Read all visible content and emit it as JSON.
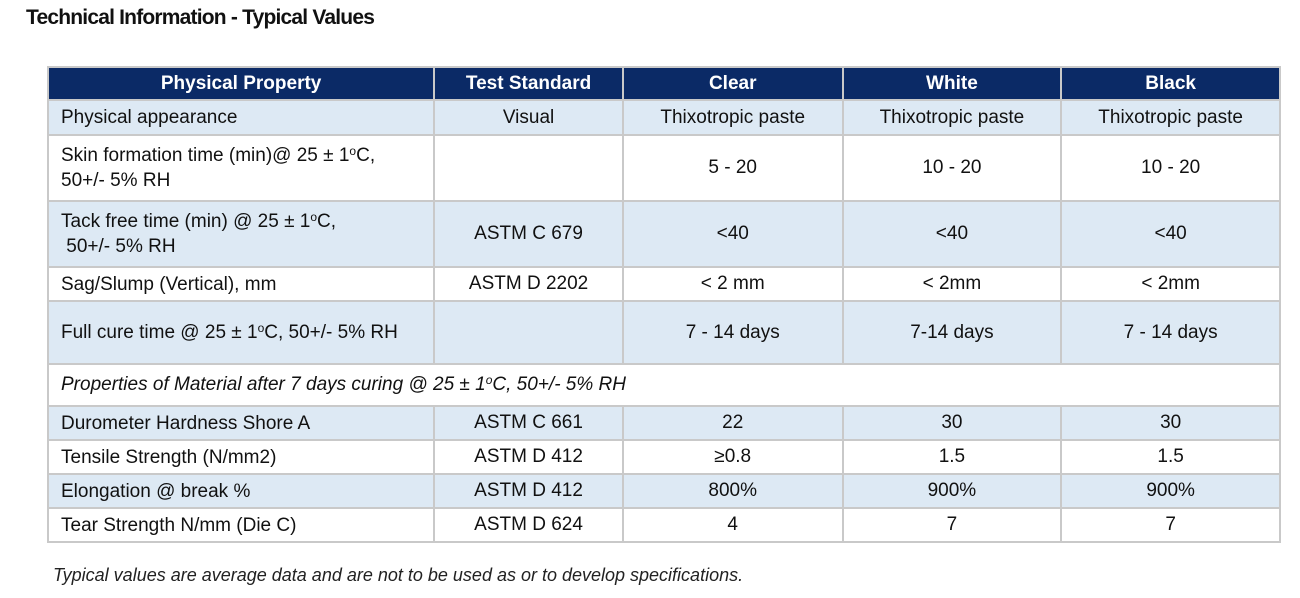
{
  "title": "Technical Information - Typical Values",
  "headers": [
    "Physical Property",
    "Test Standard",
    "Clear",
    "White",
    "Black"
  ],
  "rows": [
    {
      "property_line1": "Physical appearance",
      "property_line2": "",
      "standard": "Visual",
      "clear": "Thixotropic paste",
      "white": "Thixotropic paste",
      "black": "Thixotropic paste"
    },
    {
      "property_line1": "Skin formation time (min)@ 25 ± 1°C,",
      "property_line2": "50+/- 5% RH",
      "standard": "",
      "clear": "5 - 20",
      "white": "10 - 20",
      "black": "10 - 20"
    },
    {
      "property_line1": "Tack free time (min) @ 25 ± 1°C,",
      "property_line2": " 50+/- 5% RH",
      "standard": "ASTM C 679",
      "clear": "<40",
      "white": "<40",
      "black": "<40"
    },
    {
      "property_line1": "Sag/Slump (Vertical), mm",
      "property_line2": "",
      "standard": "ASTM D 2202",
      "clear": "< 2 mm",
      "white": "< 2mm",
      "black": "< 2mm"
    },
    {
      "property_line1": "Full cure time @ 25 ± 1°C, 50+/- 5% RH",
      "property_line2": "",
      "standard": "",
      "clear": "7 - 14 days",
      "white": "7-14 days",
      "black": "7 - 14 days"
    }
  ],
  "section_note": "Properties of Material after 7 days curing @ 25 ± 1°C, 50+/- 5% RH",
  "rows2": [
    {
      "property": "Durometer Hardness Shore A",
      "standard": "ASTM C 661",
      "clear": "22",
      "white": "30",
      "black": "30"
    },
    {
      "property": "Tensile Strength (N/mm2)",
      "standard": "ASTM D 412",
      "clear": "≥0.8",
      "white": "1.5",
      "black": "1.5"
    },
    {
      "property": "Elongation @ break %",
      "standard": "ASTM D 412",
      "clear": "800%",
      "white": "900%",
      "black": "900%"
    },
    {
      "property": "Tear Strength N/mm (Die C)",
      "standard": "ASTM D 624",
      "clear": "4",
      "white": "7",
      "black": "7"
    }
  ],
  "footnote": "Typical values are average data and are not to be used as or to develop specifications.",
  "colors": {
    "header_bg": "#0b2a66",
    "band_bg": "#dde9f4",
    "border": "#c9c9c9"
  }
}
